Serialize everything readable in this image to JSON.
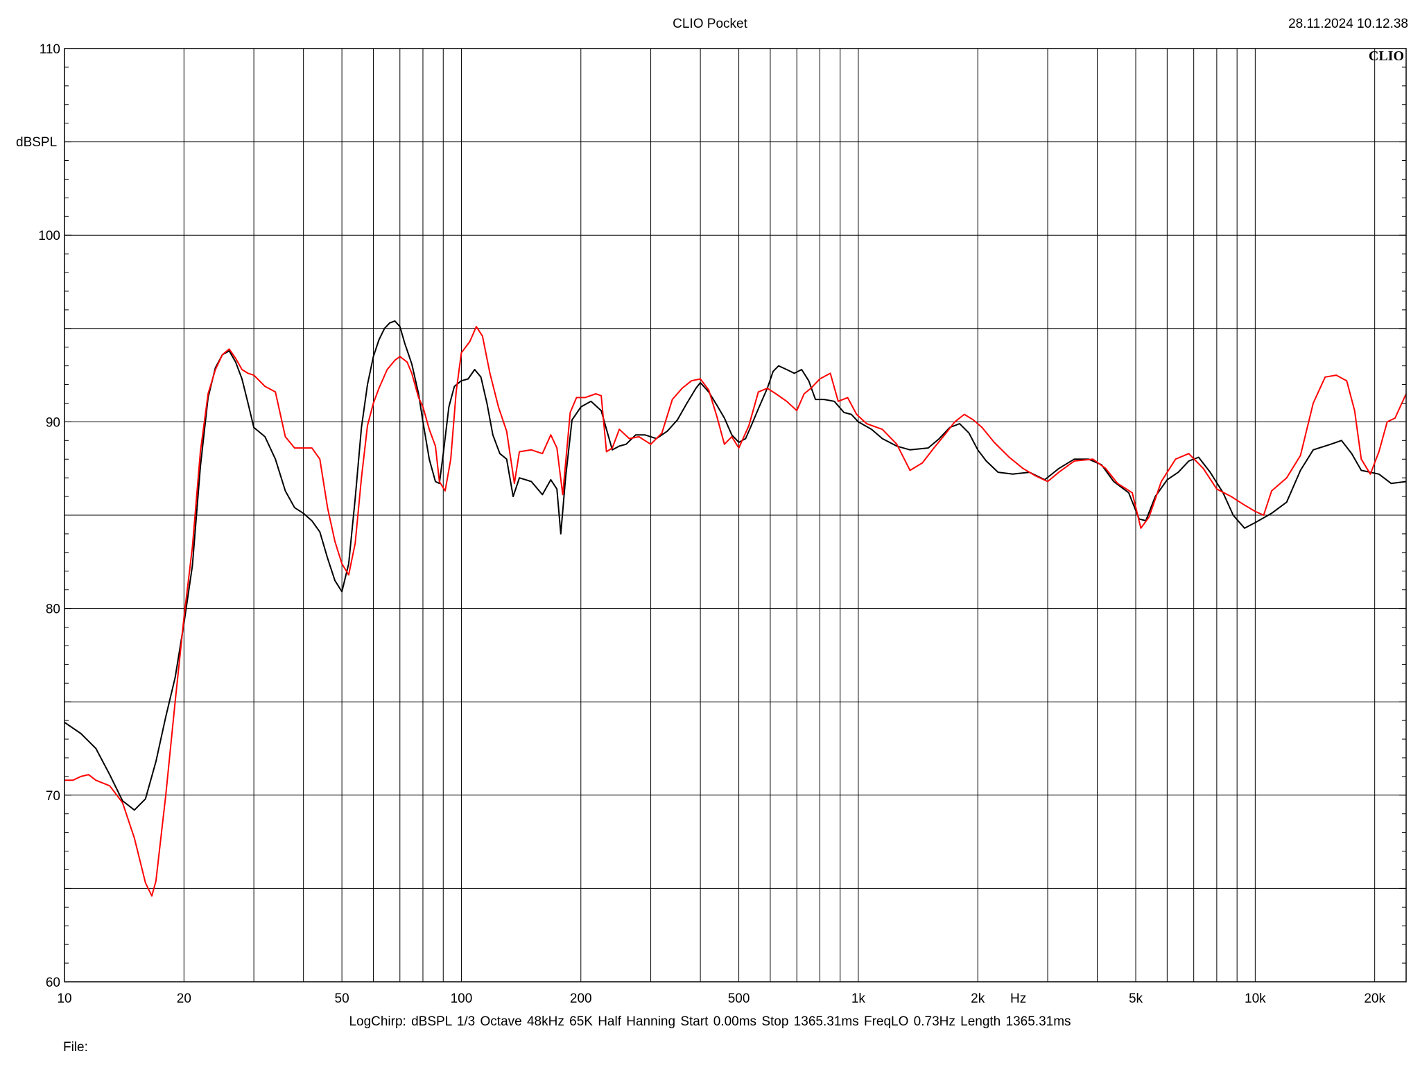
{
  "window": {
    "app_title": "CLIO Pocket",
    "timestamp": "28.11.2024 10.12.38",
    "logo_text": "CLIO",
    "settings_line": "LogChirp:  dBSPL   1/3 Octave   48kHz   65K   Half Hanning   Start 0.00ms   Stop 1365.31ms   FreqLO 0.73Hz   Length 1365.31ms",
    "file_label": "File:"
  },
  "chart_data": {
    "type": "line",
    "title": "CLIO Pocket",
    "ylabel": "dBSPL",
    "xlabel": "Hz",
    "xscale": "log",
    "xlim": [
      10,
      24000
    ],
    "ylim": [
      60,
      110
    ],
    "y_ticks": [
      {
        "value": 60,
        "label": "60"
      },
      {
        "value": 70,
        "label": "70"
      },
      {
        "value": 80,
        "label": "80"
      },
      {
        "value": 90,
        "label": "90"
      },
      {
        "value": 100,
        "label": "100"
      },
      {
        "value": 110,
        "label": "110"
      }
    ],
    "y_minor_grid": [
      65,
      75,
      85,
      95,
      105
    ],
    "x_ticks": [
      {
        "value": 10,
        "label": "10"
      },
      {
        "value": 20,
        "label": "20"
      },
      {
        "value": 50,
        "label": "50"
      },
      {
        "value": 100,
        "label": "100"
      },
      {
        "value": 200,
        "label": "200"
      },
      {
        "value": 500,
        "label": "500"
      },
      {
        "value": 1000,
        "label": "1k"
      },
      {
        "value": 2000,
        "label": "2k"
      },
      {
        "value": 5000,
        "label": "5k"
      },
      {
        "value": 10000,
        "label": "10k"
      },
      {
        "value": 20000,
        "label": "20k"
      }
    ],
    "x_grid": [
      20,
      30,
      40,
      50,
      60,
      70,
      80,
      90,
      100,
      200,
      300,
      400,
      500,
      600,
      700,
      800,
      900,
      1000,
      2000,
      3000,
      4000,
      5000,
      6000,
      7000,
      8000,
      9000,
      10000,
      20000
    ],
    "grid": true,
    "series": [
      {
        "color": "#000000",
        "points": [
          [
            10,
            73.9
          ],
          [
            11,
            73.3
          ],
          [
            12,
            72.5
          ],
          [
            13,
            71.1
          ],
          [
            14,
            69.7
          ],
          [
            15,
            69.2
          ],
          [
            16,
            69.8
          ],
          [
            17,
            71.8
          ],
          [
            18,
            74.2
          ],
          [
            19,
            76.3
          ],
          [
            20,
            79.2
          ],
          [
            21,
            82.3
          ],
          [
            22,
            87.6
          ],
          [
            23,
            91.3
          ],
          [
            24,
            92.9
          ],
          [
            25,
            93.6
          ],
          [
            26,
            93.8
          ],
          [
            27,
            93.2
          ],
          [
            28,
            92.3
          ],
          [
            29,
            91.0
          ],
          [
            30,
            89.7
          ],
          [
            32,
            89.2
          ],
          [
            34,
            88.0
          ],
          [
            36,
            86.3
          ],
          [
            38,
            85.4
          ],
          [
            40,
            85.1
          ],
          [
            42,
            84.7
          ],
          [
            44,
            84.1
          ],
          [
            46,
            82.7
          ],
          [
            48,
            81.5
          ],
          [
            50,
            80.9
          ],
          [
            52,
            82.4
          ],
          [
            54,
            85.9
          ],
          [
            56,
            89.7
          ],
          [
            58,
            92.0
          ],
          [
            60,
            93.5
          ],
          [
            62,
            94.4
          ],
          [
            64,
            95.0
          ],
          [
            66,
            95.3
          ],
          [
            68,
            95.4
          ],
          [
            70,
            95.1
          ],
          [
            72,
            94.2
          ],
          [
            75,
            93.1
          ],
          [
            78,
            91.5
          ],
          [
            80,
            90.0
          ],
          [
            83,
            88.0
          ],
          [
            86,
            86.8
          ],
          [
            88,
            86.7
          ],
          [
            90,
            88.3
          ],
          [
            93,
            90.8
          ],
          [
            96,
            91.9
          ],
          [
            100,
            92.2
          ],
          [
            104,
            92.3
          ],
          [
            108,
            92.8
          ],
          [
            112,
            92.4
          ],
          [
            116,
            91.0
          ],
          [
            120,
            89.3
          ],
          [
            125,
            88.3
          ],
          [
            130,
            88.0
          ],
          [
            135,
            86.0
          ],
          [
            140,
            87.0
          ],
          [
            150,
            86.8
          ],
          [
            160,
            86.1
          ],
          [
            168,
            86.9
          ],
          [
            174,
            86.4
          ],
          [
            178,
            84.0
          ],
          [
            183,
            87.0
          ],
          [
            190,
            90.1
          ],
          [
            200,
            90.8
          ],
          [
            212,
            91.1
          ],
          [
            225,
            90.6
          ],
          [
            232,
            89.6
          ],
          [
            240,
            88.5
          ],
          [
            250,
            88.7
          ],
          [
            260,
            88.8
          ],
          [
            275,
            89.3
          ],
          [
            290,
            89.3
          ],
          [
            310,
            89.1
          ],
          [
            330,
            89.5
          ],
          [
            350,
            90.1
          ],
          [
            370,
            91.0
          ],
          [
            390,
            91.8
          ],
          [
            400,
            92.1
          ],
          [
            420,
            91.6
          ],
          [
            440,
            90.9
          ],
          [
            460,
            90.2
          ],
          [
            480,
            89.3
          ],
          [
            500,
            88.9
          ],
          [
            520,
            89.1
          ],
          [
            540,
            89.9
          ],
          [
            560,
            90.7
          ],
          [
            590,
            91.8
          ],
          [
            610,
            92.7
          ],
          [
            630,
            93.0
          ],
          [
            660,
            92.8
          ],
          [
            690,
            92.6
          ],
          [
            720,
            92.8
          ],
          [
            750,
            92.2
          ],
          [
            780,
            91.2
          ],
          [
            820,
            91.2
          ],
          [
            870,
            91.1
          ],
          [
            920,
            90.5
          ],
          [
            960,
            90.4
          ],
          [
            1000,
            90.0
          ],
          [
            1080,
            89.6
          ],
          [
            1150,
            89.1
          ],
          [
            1250,
            88.7
          ],
          [
            1350,
            88.5
          ],
          [
            1500,
            88.6
          ],
          [
            1600,
            89.1
          ],
          [
            1700,
            89.7
          ],
          [
            1800,
            89.9
          ],
          [
            1900,
            89.4
          ],
          [
            2000,
            88.5
          ],
          [
            2100,
            87.9
          ],
          [
            2250,
            87.3
          ],
          [
            2450,
            87.2
          ],
          [
            2700,
            87.3
          ],
          [
            2950,
            86.9
          ],
          [
            3200,
            87.5
          ],
          [
            3500,
            88.0
          ],
          [
            3800,
            88.0
          ],
          [
            4100,
            87.7
          ],
          [
            4400,
            86.8
          ],
          [
            4800,
            86.2
          ],
          [
            5100,
            84.8
          ],
          [
            5300,
            84.7
          ],
          [
            5600,
            86.0
          ],
          [
            6000,
            86.9
          ],
          [
            6400,
            87.3
          ],
          [
            6800,
            87.9
          ],
          [
            7200,
            88.1
          ],
          [
            7700,
            87.3
          ],
          [
            8300,
            86.2
          ],
          [
            8800,
            85.0
          ],
          [
            9400,
            84.3
          ],
          [
            10000,
            84.6
          ],
          [
            11000,
            85.1
          ],
          [
            12000,
            85.7
          ],
          [
            13000,
            87.4
          ],
          [
            14000,
            88.5
          ],
          [
            15500,
            88.8
          ],
          [
            16500,
            89.0
          ],
          [
            17500,
            88.3
          ],
          [
            18500,
            87.4
          ],
          [
            19500,
            87.3
          ],
          [
            20500,
            87.2
          ],
          [
            22000,
            86.7
          ],
          [
            24000,
            86.8
          ]
        ]
      },
      {
        "color": "#ff0000",
        "points": [
          [
            10,
            70.8
          ],
          [
            10.5,
            70.8
          ],
          [
            11,
            71.0
          ],
          [
            11.5,
            71.1
          ],
          [
            12,
            70.8
          ],
          [
            13,
            70.5
          ],
          [
            14,
            69.6
          ],
          [
            15,
            67.7
          ],
          [
            16,
            65.3
          ],
          [
            16.6,
            64.6
          ],
          [
            17,
            65.4
          ],
          [
            18,
            70.0
          ],
          [
            19,
            75.0
          ],
          [
            20,
            79.5
          ],
          [
            21,
            83.3
          ],
          [
            22,
            88.4
          ],
          [
            23,
            91.5
          ],
          [
            24,
            92.8
          ],
          [
            25,
            93.6
          ],
          [
            26,
            93.9
          ],
          [
            27,
            93.4
          ],
          [
            28,
            92.8
          ],
          [
            29,
            92.6
          ],
          [
            30,
            92.5
          ],
          [
            32,
            91.9
          ],
          [
            34,
            91.6
          ],
          [
            36,
            89.2
          ],
          [
            38,
            88.6
          ],
          [
            40,
            88.6
          ],
          [
            42,
            88.6
          ],
          [
            44,
            88.0
          ],
          [
            46,
            85.4
          ],
          [
            48,
            83.6
          ],
          [
            50,
            82.4
          ],
          [
            52,
            81.8
          ],
          [
            54,
            83.5
          ],
          [
            56,
            87.0
          ],
          [
            58,
            89.8
          ],
          [
            60,
            91.0
          ],
          [
            62,
            91.8
          ],
          [
            65,
            92.8
          ],
          [
            68,
            93.3
          ],
          [
            70,
            93.5
          ],
          [
            73,
            93.2
          ],
          [
            75,
            92.6
          ],
          [
            78,
            91.3
          ],
          [
            80,
            90.8
          ],
          [
            83,
            89.6
          ],
          [
            86,
            88.7
          ],
          [
            88,
            86.8
          ],
          [
            91,
            86.3
          ],
          [
            94,
            88.0
          ],
          [
            97,
            91.6
          ],
          [
            100,
            93.7
          ],
          [
            105,
            94.3
          ],
          [
            109,
            95.1
          ],
          [
            113,
            94.6
          ],
          [
            118,
            92.6
          ],
          [
            124,
            90.8
          ],
          [
            130,
            89.5
          ],
          [
            136,
            86.7
          ],
          [
            140,
            88.4
          ],
          [
            150,
            88.5
          ],
          [
            160,
            88.3
          ],
          [
            168,
            89.3
          ],
          [
            174,
            88.6
          ],
          [
            180,
            86.1
          ],
          [
            188,
            90.5
          ],
          [
            195,
            91.3
          ],
          [
            205,
            91.3
          ],
          [
            218,
            91.5
          ],
          [
            225,
            91.4
          ],
          [
            232,
            88.4
          ],
          [
            240,
            88.6
          ],
          [
            250,
            89.6
          ],
          [
            265,
            89.1
          ],
          [
            280,
            89.2
          ],
          [
            300,
            88.8
          ],
          [
            320,
            89.4
          ],
          [
            340,
            91.2
          ],
          [
            360,
            91.8
          ],
          [
            380,
            92.2
          ],
          [
            400,
            92.3
          ],
          [
            420,
            91.7
          ],
          [
            440,
            90.3
          ],
          [
            460,
            88.8
          ],
          [
            480,
            89.2
          ],
          [
            500,
            88.6
          ],
          [
            530,
            89.8
          ],
          [
            560,
            91.6
          ],
          [
            590,
            91.8
          ],
          [
            620,
            91.5
          ],
          [
            660,
            91.1
          ],
          [
            700,
            90.6
          ],
          [
            730,
            91.5
          ],
          [
            760,
            91.8
          ],
          [
            800,
            92.3
          ],
          [
            850,
            92.6
          ],
          [
            890,
            91.1
          ],
          [
            940,
            91.3
          ],
          [
            990,
            90.4
          ],
          [
            1050,
            89.9
          ],
          [
            1150,
            89.6
          ],
          [
            1250,
            88.8
          ],
          [
            1350,
            87.4
          ],
          [
            1450,
            87.8
          ],
          [
            1550,
            88.6
          ],
          [
            1650,
            89.3
          ],
          [
            1750,
            90.0
          ],
          [
            1850,
            90.4
          ],
          [
            1950,
            90.1
          ],
          [
            2050,
            89.7
          ],
          [
            2200,
            88.9
          ],
          [
            2400,
            88.1
          ],
          [
            2600,
            87.5
          ],
          [
            2800,
            87.1
          ],
          [
            3000,
            86.8
          ],
          [
            3200,
            87.3
          ],
          [
            3500,
            87.9
          ],
          [
            3900,
            88.0
          ],
          [
            4200,
            87.5
          ],
          [
            4500,
            86.7
          ],
          [
            4900,
            86.2
          ],
          [
            5150,
            84.3
          ],
          [
            5400,
            84.9
          ],
          [
            5800,
            86.8
          ],
          [
            6300,
            88.0
          ],
          [
            6800,
            88.3
          ],
          [
            7400,
            87.5
          ],
          [
            8000,
            86.4
          ],
          [
            8700,
            86.0
          ],
          [
            9300,
            85.6
          ],
          [
            10000,
            85.2
          ],
          [
            10500,
            85.0
          ],
          [
            11000,
            86.3
          ],
          [
            12000,
            87.0
          ],
          [
            13000,
            88.2
          ],
          [
            14000,
            91.0
          ],
          [
            15000,
            92.4
          ],
          [
            16000,
            92.5
          ],
          [
            17000,
            92.2
          ],
          [
            17800,
            90.6
          ],
          [
            18500,
            88.0
          ],
          [
            19500,
            87.2
          ],
          [
            20500,
            88.4
          ],
          [
            21500,
            90.0
          ],
          [
            22500,
            90.2
          ],
          [
            24000,
            91.5
          ]
        ]
      }
    ]
  }
}
